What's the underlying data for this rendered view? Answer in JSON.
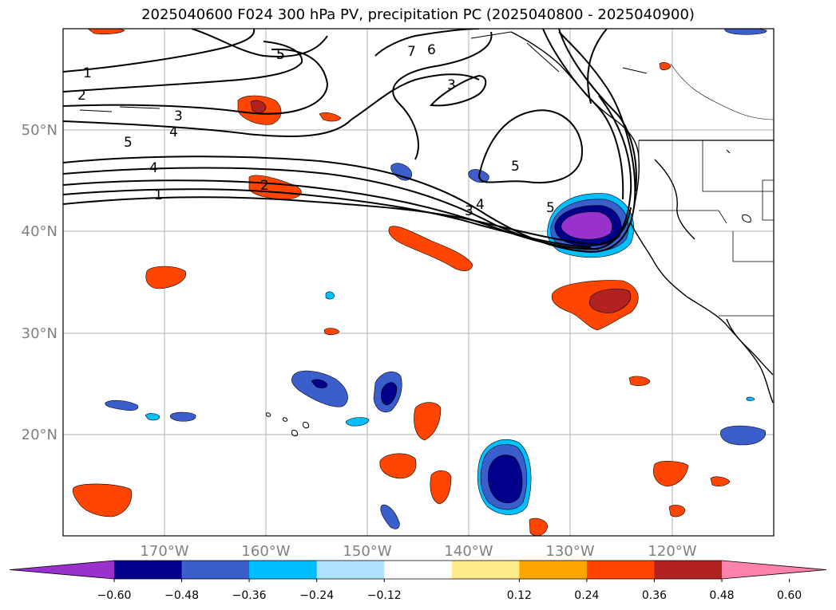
{
  "title": "2025040600 F024 300 hPa PV, precipitation PC (2025040800 - 2025040900)",
  "map": {
    "lat_ticks": [
      "50°N",
      "40°N",
      "30°N",
      "20°N"
    ],
    "lon_ticks": [
      "170°W",
      "160°W",
      "150°W",
      "140°W",
      "130°W",
      "120°W"
    ],
    "lon_range": [
      180,
      110
    ],
    "lat_range": [
      10,
      60
    ]
  },
  "contour_labels": [
    "1",
    "2",
    "3",
    "4",
    "5",
    "5",
    "4",
    "1",
    "2",
    "5",
    "7",
    "6",
    "3",
    "5",
    "4",
    "3",
    "5"
  ],
  "colorbar": {
    "colors": [
      "#9932cc",
      "#00008b",
      "#3a5fcd",
      "#00bfff",
      "#b0e2ff",
      "#ffffff",
      "#ffec8b",
      "#ffa500",
      "#ff4500",
      "#b22222",
      "#ff82ab"
    ],
    "tick_labels": [
      "−0.60",
      "−0.48",
      "−0.36",
      "−0.24",
      "−0.12",
      "0.12",
      "0.24",
      "0.36",
      "0.48",
      "0.60"
    ]
  }
}
